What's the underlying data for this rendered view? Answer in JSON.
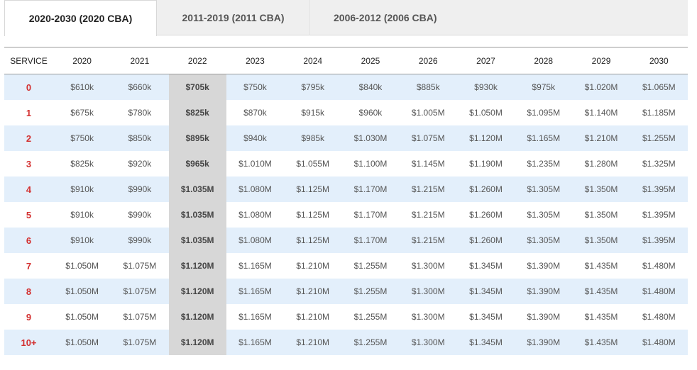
{
  "tabs": [
    {
      "label": "2020-2030 (2020 CBA)",
      "active": true
    },
    {
      "label": "2011-2019 (2011 CBA)",
      "active": false
    },
    {
      "label": "2006-2012 (2006 CBA)",
      "active": false
    }
  ],
  "table": {
    "headers": [
      "SERVICE",
      "2020",
      "2021",
      "2022",
      "2023",
      "2024",
      "2025",
      "2026",
      "2027",
      "2028",
      "2029",
      "2030"
    ],
    "highlight_column": "2022",
    "rows": [
      [
        "0",
        "$610k",
        "$660k",
        "$705k",
        "$750k",
        "$795k",
        "$840k",
        "$885k",
        "$930k",
        "$975k",
        "$1.020M",
        "$1.065M"
      ],
      [
        "1",
        "$675k",
        "$780k",
        "$825k",
        "$870k",
        "$915k",
        "$960k",
        "$1.005M",
        "$1.050M",
        "$1.095M",
        "$1.140M",
        "$1.185M"
      ],
      [
        "2",
        "$750k",
        "$850k",
        "$895k",
        "$940k",
        "$985k",
        "$1.030M",
        "$1.075M",
        "$1.120M",
        "$1.165M",
        "$1.210M",
        "$1.255M"
      ],
      [
        "3",
        "$825k",
        "$920k",
        "$965k",
        "$1.010M",
        "$1.055M",
        "$1.100M",
        "$1.145M",
        "$1.190M",
        "$1.235M",
        "$1.280M",
        "$1.325M"
      ],
      [
        "4",
        "$910k",
        "$990k",
        "$1.035M",
        "$1.080M",
        "$1.125M",
        "$1.170M",
        "$1.215M",
        "$1.260M",
        "$1.305M",
        "$1.350M",
        "$1.395M"
      ],
      [
        "5",
        "$910k",
        "$990k",
        "$1.035M",
        "$1.080M",
        "$1.125M",
        "$1.170M",
        "$1.215M",
        "$1.260M",
        "$1.305M",
        "$1.350M",
        "$1.395M"
      ],
      [
        "6",
        "$910k",
        "$990k",
        "$1.035M",
        "$1.080M",
        "$1.125M",
        "$1.170M",
        "$1.215M",
        "$1.260M",
        "$1.305M",
        "$1.350M",
        "$1.395M"
      ],
      [
        "7",
        "$1.050M",
        "$1.075M",
        "$1.120M",
        "$1.165M",
        "$1.210M",
        "$1.255M",
        "$1.300M",
        "$1.345M",
        "$1.390M",
        "$1.435M",
        "$1.480M"
      ],
      [
        "8",
        "$1.050M",
        "$1.075M",
        "$1.120M",
        "$1.165M",
        "$1.210M",
        "$1.255M",
        "$1.300M",
        "$1.345M",
        "$1.390M",
        "$1.435M",
        "$1.480M"
      ],
      [
        "9",
        "$1.050M",
        "$1.075M",
        "$1.120M",
        "$1.165M",
        "$1.210M",
        "$1.255M",
        "$1.300M",
        "$1.345M",
        "$1.390M",
        "$1.435M",
        "$1.480M"
      ],
      [
        "10+",
        "$1.050M",
        "$1.075M",
        "$1.120M",
        "$1.165M",
        "$1.210M",
        "$1.255M",
        "$1.300M",
        "$1.345M",
        "$1.390M",
        "$1.435M",
        "$1.480M"
      ]
    ]
  },
  "colors": {
    "service_text": "#d32f2f",
    "row_shade": "#e3effb",
    "highlight_column_bg": "#d7d7d7"
  }
}
